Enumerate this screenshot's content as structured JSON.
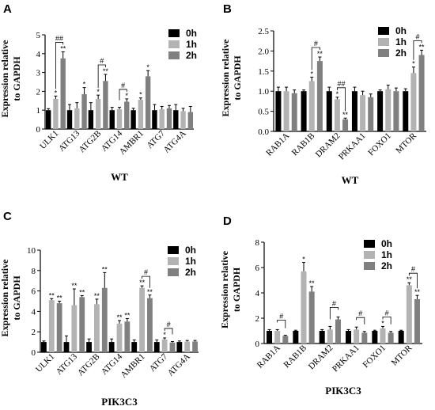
{
  "colors": {
    "h0": "#000000",
    "h1": "#b3b3b3",
    "h2": "#808080"
  },
  "chart_data": [
    {
      "type": "bar",
      "panel": "A",
      "ylabel": [
        "Expression relative",
        "to GAPDH"
      ],
      "xlabel": "WT",
      "ylim": [
        0,
        5
      ],
      "yticks": [
        "0",
        "1",
        "2",
        "3",
        "4",
        "5"
      ],
      "legend": [
        "0h",
        "1h",
        "2h"
      ],
      "categories": [
        "ULK1",
        "ATG13",
        "ATG2B",
        "ATG14",
        "AMBR1",
        "ATG7",
        "ATG4A"
      ],
      "series": [
        {
          "name": "0h",
          "values": [
            1.0,
            1.0,
            1.0,
            1.0,
            1.0,
            1.0,
            1.0
          ],
          "errors": [
            0.08,
            0.3,
            0.4,
            0.15,
            0.1,
            0.3,
            0.3
          ]
        },
        {
          "name": "1h",
          "values": [
            1.6,
            1.1,
            1.6,
            1.05,
            1.55,
            1.05,
            0.95
          ],
          "errors": [
            0.15,
            0.3,
            0.2,
            0.1,
            0.1,
            0.15,
            0.15
          ]
        },
        {
          "name": "2h",
          "values": [
            3.75,
            1.85,
            2.55,
            1.45,
            2.8,
            1.1,
            0.9
          ],
          "errors": [
            0.35,
            0.35,
            0.35,
            0.15,
            0.3,
            0.15,
            0.3
          ]
        }
      ],
      "marks": [
        [
          "",
          "*",
          "**"
        ],
        [
          "",
          "",
          "*"
        ],
        [
          "",
          "*",
          "**"
        ],
        [
          "",
          "",
          "*"
        ],
        [
          "",
          "*",
          "*"
        ],
        [
          "",
          "",
          ""
        ],
        [
          "",
          "",
          ""
        ]
      ],
      "brackets": [
        {
          "cat": 0,
          "label": "##"
        },
        {
          "cat": 2,
          "label": "#"
        },
        {
          "cat": 3,
          "label": "#"
        }
      ]
    },
    {
      "type": "bar",
      "panel": "B",
      "ylabel": [
        "Expression relative",
        "to GAPDH"
      ],
      "xlabel": "WT",
      "ylim": [
        0,
        2.5
      ],
      "yticks": [
        "0.0",
        "0.5",
        "1.0",
        "1.5",
        "2.0",
        "2.5"
      ],
      "legend": [
        "0h",
        "1h",
        "2h"
      ],
      "categories": [
        "RAB1A",
        "RAB1B",
        "DRAM2",
        "PRKAA1",
        "FOXO1",
        "MTOR"
      ],
      "series": [
        {
          "name": "0h",
          "values": [
            1.0,
            1.0,
            1.0,
            1.0,
            1.0,
            1.0
          ],
          "errors": [
            0.1,
            0.03,
            0.1,
            0.1,
            0.03,
            0.06
          ]
        },
        {
          "name": "1h",
          "values": [
            1.0,
            1.25,
            0.8,
            0.9,
            1.05,
            1.45
          ],
          "errors": [
            0.1,
            0.1,
            0.05,
            0.1,
            0.1,
            0.15
          ]
        },
        {
          "name": "2h",
          "values": [
            0.95,
            1.75,
            0.3,
            0.85,
            1.0,
            1.9
          ],
          "errors": [
            0.08,
            0.1,
            0.03,
            0.08,
            0.08,
            0.12
          ]
        }
      ],
      "marks": [
        [
          "",
          "",
          ""
        ],
        [
          "",
          "*",
          "**"
        ],
        [
          "",
          "*",
          "**"
        ],
        [
          "",
          "",
          ""
        ],
        [
          "",
          "",
          ""
        ],
        [
          "",
          "*",
          "**"
        ]
      ],
      "brackets": [
        {
          "cat": 1,
          "label": "#"
        },
        {
          "cat": 2,
          "label": "##"
        },
        {
          "cat": 5,
          "label": "#"
        }
      ]
    },
    {
      "type": "bar",
      "panel": "C",
      "ylabel": [
        "Expression relative",
        "to GAPDH"
      ],
      "xlabel": "PIK3C3",
      "ylim": [
        0,
        10
      ],
      "yticks": [
        "0",
        "2",
        "4",
        "6",
        "8",
        "10"
      ],
      "legend": [
        "0h",
        "1h",
        "2h"
      ],
      "categories": [
        "ULK1",
        "ATG13",
        "ATG2B",
        "ATG14",
        "AMBR1",
        "ATG7",
        "ATG4A"
      ],
      "series": [
        {
          "name": "0h",
          "values": [
            1.0,
            1.0,
            1.0,
            1.0,
            1.0,
            1.0,
            1.0
          ],
          "errors": [
            0.1,
            0.6,
            0.3,
            0.3,
            0.2,
            0.2,
            0.1
          ]
        },
        {
          "name": "1h",
          "values": [
            5.1,
            4.6,
            4.7,
            2.8,
            6.3,
            1.25,
            1.05
          ],
          "errors": [
            0.15,
            1.6,
            0.5,
            0.3,
            0.2,
            0.15,
            0.1
          ]
        },
        {
          "name": "2h",
          "values": [
            4.8,
            5.4,
            6.3,
            3.0,
            5.3,
            0.95,
            1.05
          ],
          "errors": [
            0.2,
            0.15,
            1.5,
            0.3,
            0.3,
            0.1,
            0.1
          ]
        }
      ],
      "marks": [
        [
          "",
          "**",
          "**"
        ],
        [
          "",
          "**",
          "**"
        ],
        [
          "",
          "**",
          "**"
        ],
        [
          "",
          "**",
          "**"
        ],
        [
          "",
          "**",
          "**"
        ],
        [
          "",
          "*",
          ""
        ],
        [
          "",
          "",
          ""
        ]
      ],
      "brackets": [
        {
          "cat": 4,
          "label": "#"
        },
        {
          "cat": 5,
          "label": "#"
        }
      ]
    },
    {
      "type": "bar",
      "panel": "D",
      "ylabel": [
        "Expression relative",
        "to GAPDH"
      ],
      "xlabel": "PIK3C3",
      "ylim": [
        0,
        8
      ],
      "yticks": [
        "0",
        "2",
        "4",
        "6",
        "8"
      ],
      "legend": [
        "0h",
        "1h",
        "2h"
      ],
      "categories": [
        "RAB1A",
        "RAB1B",
        "DRAM2",
        "PRKAA1",
        "FOXO1",
        "MTOR"
      ],
      "series": [
        {
          "name": "0h",
          "values": [
            1.0,
            1.0,
            1.0,
            1.0,
            1.0,
            1.0
          ],
          "errors": [
            0.1,
            0.05,
            0.1,
            0.1,
            0.05,
            0.05
          ]
        },
        {
          "name": "1h",
          "values": [
            1.0,
            5.7,
            1.1,
            1.1,
            1.2,
            4.6
          ],
          "errors": [
            0.1,
            0.7,
            0.25,
            0.2,
            0.15,
            0.2
          ]
        },
        {
          "name": "2h",
          "values": [
            0.6,
            4.1,
            1.9,
            0.85,
            0.85,
            3.5
          ],
          "errors": [
            0.05,
            0.4,
            0.2,
            0.1,
            0.1,
            0.3
          ]
        }
      ],
      "marks": [
        [
          "",
          "",
          ""
        ],
        [
          "",
          "*",
          "**"
        ],
        [
          "",
          "",
          ""
        ],
        [
          "",
          "",
          ""
        ],
        [
          "",
          "*",
          ""
        ],
        [
          "",
          "**",
          "**"
        ]
      ],
      "brackets": [
        {
          "cat": 0,
          "label": "#"
        },
        {
          "cat": 2,
          "label": "#"
        },
        {
          "cat": 3,
          "label": "#"
        },
        {
          "cat": 4,
          "label": "#"
        },
        {
          "cat": 5,
          "label": "#"
        }
      ]
    }
  ]
}
